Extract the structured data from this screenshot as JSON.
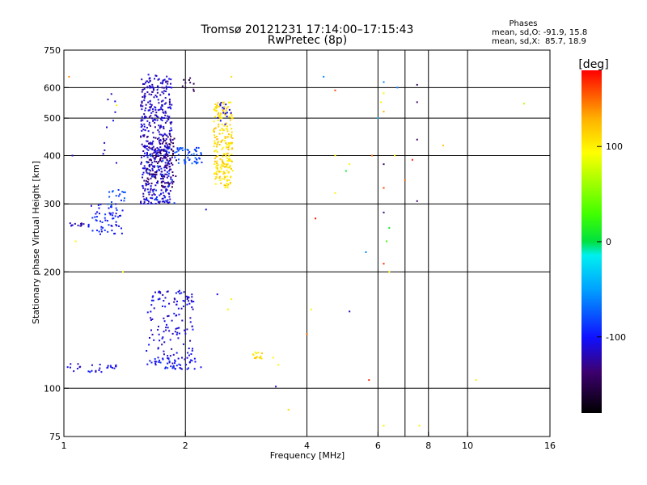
{
  "chart_data": {
    "type": "scatter",
    "title": "Tromsø 20121231 17:14:00–17:15:43",
    "subtitle": "RwPretec (8p)",
    "stats": {
      "heading": "Phases",
      "line1": "mean, sd,O: -91.9, 15.8",
      "line2": "mean, sd,X:  85.7, 18.9"
    },
    "xlabel": "Frequency [MHz]",
    "ylabel": "Stationary phase Virtual Height [km]",
    "xscale": "log",
    "yscale": "log",
    "xlim": [
      1,
      16
    ],
    "ylim": [
      75,
      750
    ],
    "xticks": [
      1,
      2,
      4,
      6,
      8,
      10,
      16
    ],
    "xtick_labels": [
      "1",
      "2",
      "4",
      "6",
      "8",
      "10",
      "16"
    ],
    "x_gridlines": [
      2,
      4,
      6,
      7,
      8,
      10
    ],
    "yticks": [
      75,
      100,
      200,
      300,
      400,
      500,
      600,
      750
    ],
    "ytick_labels": [
      "75",
      "100",
      "200",
      "300",
      "400",
      "500",
      "600",
      "750"
    ],
    "y_gridlines": [
      100,
      200,
      300,
      400,
      500,
      600
    ],
    "grid": true,
    "colorbar": {
      "label": "[deg]",
      "range": [
        -180,
        180
      ],
      "ticks": [
        100,
        0,
        -100
      ],
      "tick_labels": [
        "100",
        "0",
        "-100"
      ],
      "colormap": "rainbow"
    },
    "clusters": [
      {
        "x": [
          1.02,
          1.12
        ],
        "y": [
          262,
          268
        ],
        "n": 12,
        "phase": -120
      },
      {
        "x": [
          1.0,
          1.1
        ],
        "y": [
          110,
          118
        ],
        "n": 8,
        "phase": -110
      },
      {
        "x": [
          1.15,
          1.4
        ],
        "y": [
          250,
          300
        ],
        "n": 60,
        "phase": -100
      },
      {
        "x": [
          1.28,
          1.42
        ],
        "y": [
          290,
          330
        ],
        "n": 20,
        "phase": -80
      },
      {
        "x": [
          1.15,
          1.35
        ],
        "y": [
          110,
          116
        ],
        "n": 20,
        "phase": -110
      },
      {
        "x": [
          1.25,
          1.38
        ],
        "y": [
          380,
          600
        ],
        "n": 10,
        "phase": -110
      },
      {
        "x": [
          1.55,
          1.85
        ],
        "y": [
          300,
          650
        ],
        "n": 450,
        "phase": -115
      },
      {
        "x": [
          1.6,
          1.9
        ],
        "y": [
          330,
          450
        ],
        "n": 120,
        "phase": -140
      },
      {
        "x": [
          1.6,
          1.9
        ],
        "y": [
          300,
          420
        ],
        "n": 40,
        "phase": -90
      },
      {
        "x": [
          1.9,
          2.2
        ],
        "y": [
          380,
          420
        ],
        "n": 50,
        "phase": -80
      },
      {
        "x": [
          1.95,
          2.1
        ],
        "y": [
          580,
          650
        ],
        "n": 10,
        "phase": -150
      },
      {
        "x": [
          1.6,
          2.1
        ],
        "y": [
          112,
          180
        ],
        "n": 140,
        "phase": -110
      },
      {
        "x": [
          1.6,
          2.2
        ],
        "y": [
          112,
          120
        ],
        "n": 40,
        "phase": -100
      },
      {
        "x": [
          2.35,
          2.62
        ],
        "y": [
          330,
          550
        ],
        "n": 220,
        "phase": 110
      },
      {
        "x": [
          2.4,
          2.6
        ],
        "y": [
          480,
          550
        ],
        "n": 15,
        "phase": -110
      },
      {
        "x": [
          2.9,
          3.1
        ],
        "y": [
          119,
          124
        ],
        "n": 15,
        "phase": 105
      }
    ],
    "points": [
      {
        "x": 1.03,
        "y": 640,
        "phase": 140
      },
      {
        "x": 1.05,
        "y": 400,
        "phase": -120
      },
      {
        "x": 1.07,
        "y": 240,
        "phase": 100
      },
      {
        "x": 1.4,
        "y": 200,
        "phase": 100
      },
      {
        "x": 1.35,
        "y": 540,
        "phase": 100
      },
      {
        "x": 2.6,
        "y": 640,
        "phase": 110
      },
      {
        "x": 2.25,
        "y": 290,
        "phase": -110
      },
      {
        "x": 2.4,
        "y": 175,
        "phase": -110
      },
      {
        "x": 2.55,
        "y": 160,
        "phase": 100
      },
      {
        "x": 2.6,
        "y": 170,
        "phase": 100
      },
      {
        "x": 3.3,
        "y": 120,
        "phase": 100
      },
      {
        "x": 3.4,
        "y": 115,
        "phase": 100
      },
      {
        "x": 3.35,
        "y": 101,
        "phase": -110
      },
      {
        "x": 3.6,
        "y": 88,
        "phase": 110
      },
      {
        "x": 4.0,
        "y": 138,
        "phase": 150
      },
      {
        "x": 4.1,
        "y": 160,
        "phase": 100
      },
      {
        "x": 4.2,
        "y": 275,
        "phase": 175
      },
      {
        "x": 4.4,
        "y": 640,
        "phase": -60
      },
      {
        "x": 4.7,
        "y": 590,
        "phase": 160
      },
      {
        "x": 4.7,
        "y": 400,
        "phase": 100
      },
      {
        "x": 4.7,
        "y": 320,
        "phase": 100
      },
      {
        "x": 5.0,
        "y": 365,
        "phase": 10
      },
      {
        "x": 5.1,
        "y": 380,
        "phase": 100
      },
      {
        "x": 5.1,
        "y": 158,
        "phase": -120
      },
      {
        "x": 5.6,
        "y": 225,
        "phase": -60
      },
      {
        "x": 5.7,
        "y": 105,
        "phase": 170
      },
      {
        "x": 5.8,
        "y": 400,
        "phase": 150
      },
      {
        "x": 6.0,
        "y": 500,
        "phase": -40
      },
      {
        "x": 6.1,
        "y": 550,
        "phase": 100
      },
      {
        "x": 6.2,
        "y": 620,
        "phase": -60
      },
      {
        "x": 6.2,
        "y": 580,
        "phase": 100
      },
      {
        "x": 6.2,
        "y": 520,
        "phase": 130
      },
      {
        "x": 6.2,
        "y": 380,
        "phase": -140
      },
      {
        "x": 6.2,
        "y": 330,
        "phase": 160
      },
      {
        "x": 6.2,
        "y": 285,
        "phase": -130
      },
      {
        "x": 6.2,
        "y": 210,
        "phase": 170
      },
      {
        "x": 6.2,
        "y": 80,
        "phase": 100
      },
      {
        "x": 6.3,
        "y": 240,
        "phase": 30
      },
      {
        "x": 6.4,
        "y": 260,
        "phase": 10
      },
      {
        "x": 6.4,
        "y": 200,
        "phase": 100
      },
      {
        "x": 6.6,
        "y": 400,
        "phase": 100
      },
      {
        "x": 6.7,
        "y": 600,
        "phase": -60
      },
      {
        "x": 7.0,
        "y": 345,
        "phase": 150
      },
      {
        "x": 7.3,
        "y": 390,
        "phase": 170
      },
      {
        "x": 7.5,
        "y": 610,
        "phase": -150
      },
      {
        "x": 7.5,
        "y": 550,
        "phase": -140
      },
      {
        "x": 7.5,
        "y": 440,
        "phase": -140
      },
      {
        "x": 7.5,
        "y": 305,
        "phase": -140
      },
      {
        "x": 7.6,
        "y": 80,
        "phase": 100
      },
      {
        "x": 8.7,
        "y": 425,
        "phase": 120
      },
      {
        "x": 10.5,
        "y": 105,
        "phase": 100
      },
      {
        "x": 13.8,
        "y": 545,
        "phase": 70
      }
    ]
  }
}
